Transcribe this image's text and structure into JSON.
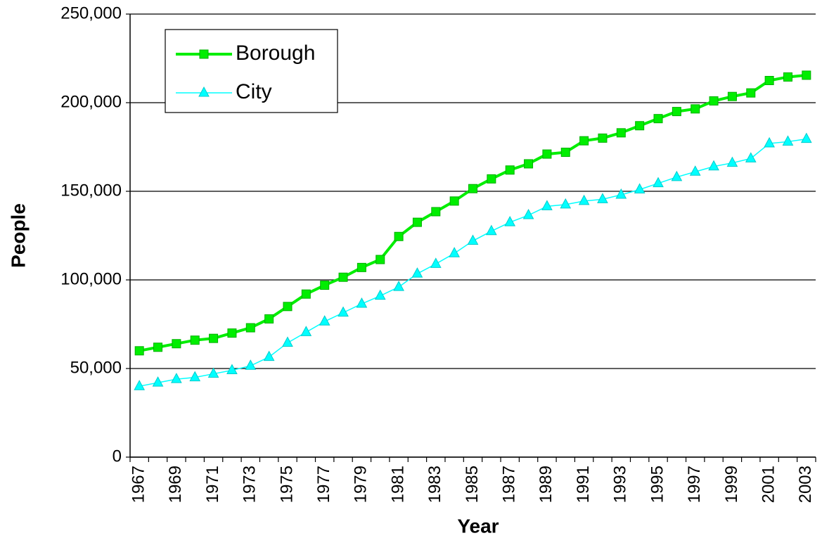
{
  "chart_data": {
    "type": "line",
    "x_label": "Year",
    "y_label": "People",
    "categories": [
      "1967",
      null,
      "1969",
      null,
      "1971",
      null,
      "1973",
      null,
      "1975",
      null,
      "1977",
      null,
      "1979",
      null,
      "1981",
      null,
      "1983",
      null,
      "1985",
      null,
      "1987",
      null,
      "1989",
      null,
      "1991",
      null,
      "1993",
      null,
      "1995",
      null,
      "1997",
      null,
      "1999",
      null,
      "2001",
      null,
      "2003"
    ],
    "series": [
      {
        "name": "Borough",
        "color": "#00ee00",
        "marker": "square",
        "values": [
          60000,
          62000,
          64000,
          66000,
          67000,
          70000,
          73000,
          78000,
          85000,
          92000,
          97000,
          101500,
          107000,
          111500,
          124500,
          132500,
          138500,
          144500,
          151500,
          157000,
          162000,
          165500,
          171000,
          172000,
          178500,
          180000,
          183000,
          187000,
          191000,
          195000,
          196500,
          201000,
          203500,
          205500,
          212500,
          214500,
          215500
        ]
      },
      {
        "name": "City",
        "color": "#00ffff",
        "marker": "triangle",
        "values": [
          40000,
          42000,
          44000,
          45000,
          47000,
          49000,
          51500,
          56500,
          64500,
          70500,
          76500,
          81500,
          86500,
          91000,
          96000,
          103500,
          109000,
          115000,
          122000,
          127500,
          132500,
          136500,
          141500,
          142500,
          144500,
          145500,
          148000,
          151000,
          154500,
          158000,
          161000,
          164000,
          166000,
          168500,
          177000,
          178000,
          179500
        ]
      }
    ],
    "ylim": [
      0,
      250000
    ],
    "yticks": [
      0,
      {
        "value": 50000,
        "label": "50,000"
      },
      {
        "value": 100000,
        "label": "100,000"
      },
      {
        "value": 150000,
        "label": "150,000"
      },
      {
        "value": 200000,
        "label": "200,000"
      },
      {
        "value": 250000,
        "label": "250,000"
      }
    ],
    "grid": true,
    "legend": "top-left"
  }
}
